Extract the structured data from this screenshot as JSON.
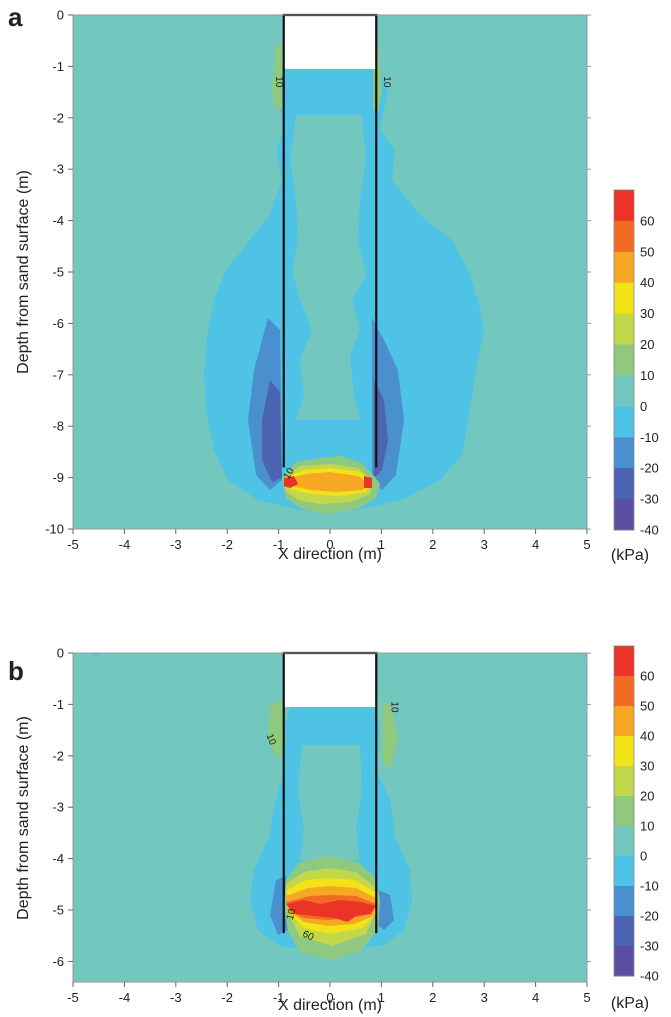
{
  "chart_data": [
    {
      "type": "heatmap",
      "panel": "a",
      "xlabel": "X direction (m)",
      "ylabel": "Depth from sand surface (m)",
      "xlim": [
        -5,
        5
      ],
      "ylim": [
        -10,
        0
      ],
      "xticks": [
        "-5",
        "-4",
        "-3",
        "-2",
        "-1",
        "0",
        "1",
        "2",
        "3",
        "4",
        "5"
      ],
      "yticks": [
        "0",
        "-1",
        "-2",
        "-3",
        "-4",
        "-5",
        "-6",
        "-7",
        "-8",
        "-9",
        "-10"
      ],
      "caisson": {
        "x_left": -0.9,
        "x_right": 0.9,
        "tip_depth": -8.8,
        "soil_plug_top": -1.05
      },
      "contour_labels": [
        {
          "text": "10",
          "x": -1.05,
          "y": -1.3,
          "rotate": 90
        },
        {
          "text": "10",
          "x": 1.05,
          "y": -1.3,
          "rotate": 90
        },
        {
          "text": "10",
          "x": -0.75,
          "y": -8.95,
          "rotate": -60
        }
      ],
      "colorbar": {
        "ticks": [
          "60",
          "50",
          "40",
          "30",
          "20",
          "10",
          "0",
          "-10",
          "-20",
          "-30",
          "-40"
        ],
        "unit": "(kPa)"
      }
    },
    {
      "type": "heatmap",
      "panel": "b",
      "xlabel": "X direction (m)",
      "ylabel": "Depth from sand surface (m)",
      "xlim": [
        -5,
        5
      ],
      "ylim": [
        -6.4,
        0
      ],
      "xticks": [
        "-5",
        "-4",
        "-3",
        "-2",
        "-1",
        "0",
        "1",
        "2",
        "3",
        "4",
        "5"
      ],
      "yticks": [
        "0",
        "-1",
        "-2",
        "-3",
        "-4",
        "-5",
        "-6"
      ],
      "caisson": {
        "x_left": -0.9,
        "x_right": 0.9,
        "tip_depth": -5.45,
        "soil_plug_top": -1.05
      },
      "contour_labels": [
        {
          "text": "10",
          "x": -1.2,
          "y": -1.7,
          "rotate": 70
        },
        {
          "text": "10",
          "x": 1.2,
          "y": -1.05,
          "rotate": 90
        },
        {
          "text": "10",
          "x": -0.7,
          "y": -5.1,
          "rotate": -75
        },
        {
          "text": "60",
          "x": -0.45,
          "y": -5.55,
          "rotate": 25
        }
      ],
      "colorbar": {
        "ticks": [
          "60",
          "50",
          "40",
          "30",
          "20",
          "10",
          "0",
          "-10",
          "-20",
          "-30",
          "-40"
        ],
        "unit": "(kPa)"
      }
    }
  ],
  "colors": {
    "background_0_10": "#72c7bf",
    "neg_0_10": "#4ec3e6",
    "neg_10_20": "#4a90cf",
    "neg_20_30": "#4b63b0",
    "neg_30_40": "#5b4d9f",
    "pos_10_20": "#8fc97f",
    "pos_20_30": "#c2d84a",
    "pos_30_40": "#f2e318",
    "pos_40_50": "#f7a823",
    "pos_50_60": "#f26b22",
    "pos_60_plus": "#ec3327"
  }
}
